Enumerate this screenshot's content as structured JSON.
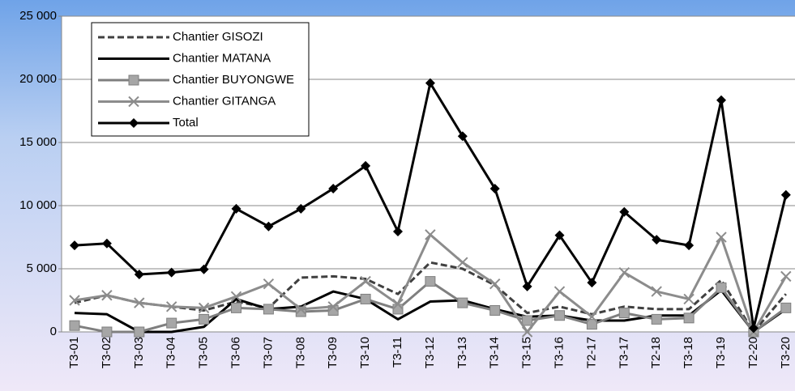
{
  "chart_data": {
    "type": "line",
    "categories": [
      "T3-01",
      "T3-02",
      "T3-03",
      "T3-04",
      "T3-05",
      "T3-06",
      "T3-07",
      "T3-08",
      "T3-09",
      "T3-10",
      "T3-11",
      "T3-12",
      "T3-13",
      "T3-14",
      "T3-15",
      "T3-16",
      "T2-17",
      "T3-17",
      "T2-18",
      "T3-18",
      "T3-19",
      "T2-20",
      "T3-20"
    ],
    "series": [
      {
        "name": "Chantier GISOZI",
        "color": "#404040",
        "dash": true,
        "marker": "none",
        "values": [
          2300,
          2900,
          2300,
          2000,
          1700,
          2400,
          1900,
          4300,
          4400,
          4200,
          3000,
          5500,
          5000,
          3700,
          1500,
          2000,
          1400,
          2000,
          1800,
          1800,
          4100,
          0,
          3000
        ]
      },
      {
        "name": "Chantier MATANA",
        "color": "#000000",
        "dash": false,
        "marker": "none",
        "values": [
          1500,
          1400,
          0,
          0,
          400,
          2600,
          1800,
          2000,
          3200,
          2600,
          1000,
          2400,
          2500,
          1800,
          1200,
          1300,
          900,
          900,
          1300,
          1300,
          3300,
          0,
          1800
        ]
      },
      {
        "name": "Chantier BUYONGWE",
        "color": "#7f7f7f",
        "dash": false,
        "marker": "square",
        "values": [
          500,
          0,
          0,
          700,
          1000,
          1900,
          1800,
          1600,
          1700,
          2600,
          1800,
          4000,
          2300,
          1700,
          900,
          1300,
          600,
          1500,
          1000,
          1100,
          3500,
          0,
          1900
        ]
      },
      {
        "name": "Chantier GITANGA",
        "color": "#8c8c8c",
        "dash": false,
        "marker": "x",
        "values": [
          2500,
          2900,
          2300,
          2000,
          1900,
          2800,
          3800,
          1800,
          2000,
          4000,
          2200,
          7700,
          5500,
          3800,
          0,
          3200,
          1200,
          4700,
          3200,
          2600,
          7500,
          0,
          4400
        ]
      },
      {
        "name": "Total",
        "color": "#000000",
        "dash": false,
        "marker": "diamond",
        "values": [
          6850,
          7000,
          4550,
          4700,
          4950,
          9750,
          8350,
          9750,
          11350,
          13150,
          7950,
          19700,
          15500,
          11350,
          3600,
          7650,
          3900,
          9500,
          7300,
          6850,
          18350,
          300,
          10850
        ]
      }
    ],
    "ylim": [
      0,
      25000
    ],
    "yticks": [
      0,
      {
        "value": 5000,
        "label": "5 000"
      },
      {
        "value": 10000,
        "label": "10 000"
      },
      {
        "value": 15000,
        "label": "15 000"
      },
      {
        "value": 20000,
        "label": "20 000"
      },
      {
        "value": 25000,
        "label": "25 000"
      }
    ],
    "grid": true,
    "legend": "top-left"
  }
}
